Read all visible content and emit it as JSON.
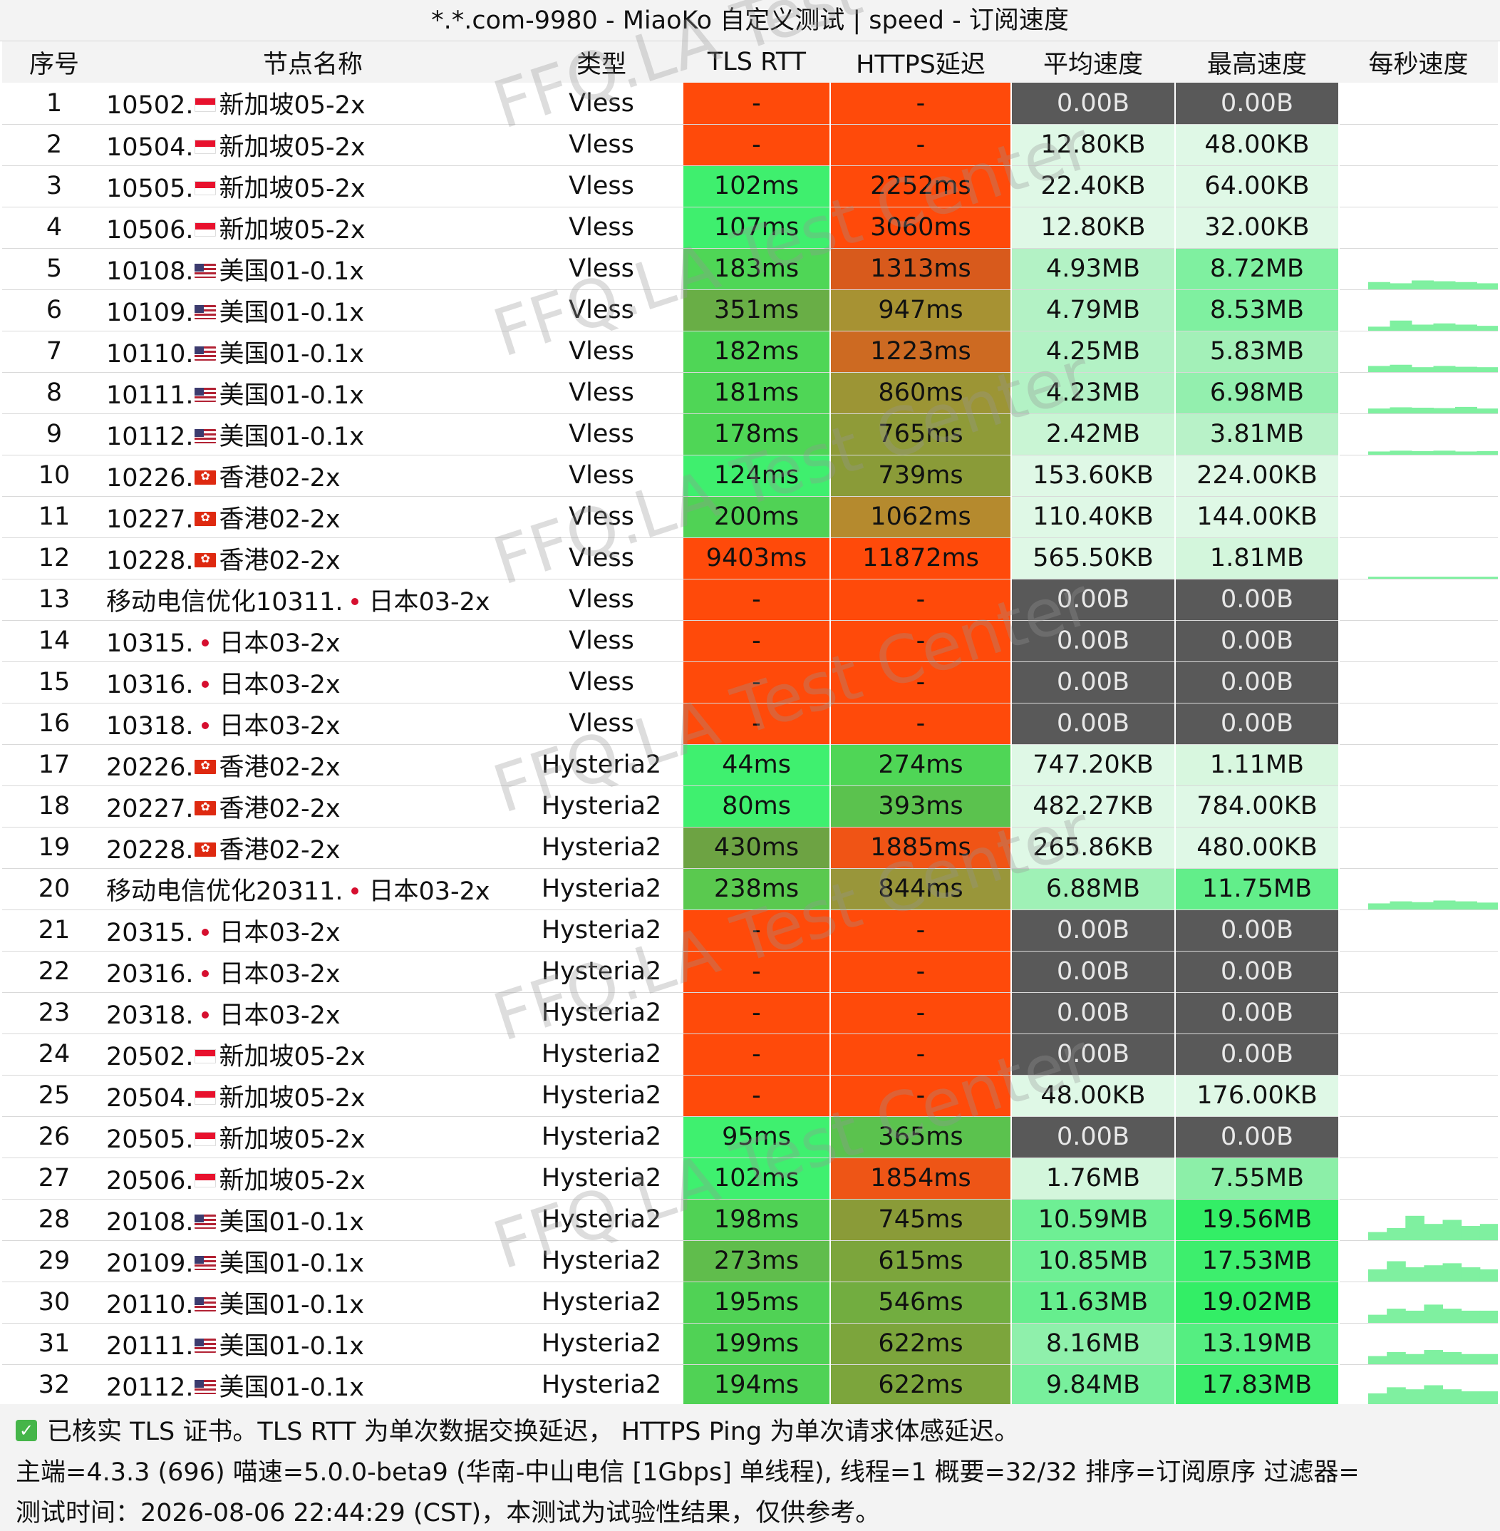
{
  "title": "*.*.com-9980 - MiaoKo 自定义测试 | speed - 订阅速度",
  "watermark": [
    "FFQ.LA",
    "Test Center"
  ],
  "columns": [
    "序号",
    "节点名称",
    "类型",
    "TLS RTT",
    "HTTPS延迟",
    "平均速度",
    "最高速度",
    "每秒速度"
  ],
  "colors": {
    "bad": "#ff4500",
    "dead": "#595959",
    "good": "#33ee66",
    "mid": "#67bb44",
    "slow": "#8a9b38",
    "orange": "#e64a19"
  },
  "rows": [
    {
      "idx": "1",
      "pre": "10502.",
      "flag": "sg",
      "flag_icon": "singapore-flag-icon",
      "suf": "新加坡05-2x",
      "type": "Vless",
      "tls": "-",
      "https": "-",
      "avg": "0.00B",
      "max": "0.00B",
      "tls_c": "#ff4a0a",
      "https_c": "#ff4a0a",
      "avg_c": "#595959",
      "max_c": "#595959",
      "spark": []
    },
    {
      "idx": "2",
      "pre": "10504.",
      "flag": "sg",
      "flag_icon": "singapore-flag-icon",
      "suf": "新加坡05-2x",
      "type": "Vless",
      "tls": "-",
      "https": "-",
      "avg": "12.80KB",
      "max": "48.00KB",
      "tls_c": "#ff4a0a",
      "https_c": "#ff4a0a",
      "avg_c": "#dff8e6",
      "max_c": "#dff8e6",
      "spark": []
    },
    {
      "idx": "3",
      "pre": "10505.",
      "flag": "sg",
      "flag_icon": "singapore-flag-icon",
      "suf": "新加坡05-2x",
      "type": "Vless",
      "tls": "102ms",
      "https": "2252ms",
      "avg": "22.40KB",
      "max": "64.00KB",
      "tls_c": "#3fef6e",
      "https_c": "#ff4a0a",
      "avg_c": "#dff8e6",
      "max_c": "#dff8e6",
      "spark": []
    },
    {
      "idx": "4",
      "pre": "10506.",
      "flag": "sg",
      "flag_icon": "singapore-flag-icon",
      "suf": "新加坡05-2x",
      "type": "Vless",
      "tls": "107ms",
      "https": "3060ms",
      "avg": "12.80KB",
      "max": "32.00KB",
      "tls_c": "#3fef6e",
      "https_c": "#ff4a0a",
      "avg_c": "#dff8e6",
      "max_c": "#dff8e6",
      "spark": []
    },
    {
      "idx": "5",
      "pre": "10108.",
      "flag": "us",
      "flag_icon": "us-flag-icon",
      "suf": "美国01-0.1x",
      "type": "Vless",
      "tls": "183ms",
      "https": "1313ms",
      "avg": "4.93MB",
      "max": "8.72MB",
      "tls_c": "#4fd656",
      "https_c": "#d85a1c",
      "avg_c": "#b3f2c5",
      "max_c": "#7ff0a0",
      "spark": [
        0.18,
        0.15,
        0.22,
        0.2,
        0.18,
        0.15
      ]
    },
    {
      "idx": "6",
      "pre": "10109.",
      "flag": "us",
      "flag_icon": "us-flag-icon",
      "suf": "美国01-0.1x",
      "type": "Vless",
      "tls": "351ms",
      "https": "947ms",
      "avg": "4.79MB",
      "max": "8.53MB",
      "tls_c": "#69ae46",
      "https_c": "#a79233",
      "avg_c": "#b3f2c5",
      "max_c": "#7ff0a0",
      "spark": [
        0.1,
        0.25,
        0.15,
        0.18,
        0.15,
        0.12
      ]
    },
    {
      "idx": "7",
      "pre": "10110.",
      "flag": "us",
      "flag_icon": "us-flag-icon",
      "suf": "美国01-0.1x",
      "type": "Vless",
      "tls": "182ms",
      "https": "1223ms",
      "avg": "4.25MB",
      "max": "5.83MB",
      "tls_c": "#4fd656",
      "https_c": "#cd6a22",
      "avg_c": "#b3f2c5",
      "max_c": "#a3f0b8",
      "spark": [
        0.15,
        0.18,
        0.12,
        0.15,
        0.13,
        0.12
      ]
    },
    {
      "idx": "8",
      "pre": "10111.",
      "flag": "us",
      "flag_icon": "us-flag-icon",
      "suf": "美国01-0.1x",
      "type": "Vless",
      "tls": "181ms",
      "https": "860ms",
      "avg": "4.23MB",
      "max": "6.98MB",
      "tls_c": "#4fd656",
      "https_c": "#9c9535",
      "avg_c": "#b3f2c5",
      "max_c": "#93efae",
      "spark": [
        0.12,
        0.15,
        0.14,
        0.13,
        0.16,
        0.12
      ]
    },
    {
      "idx": "9",
      "pre": "10112.",
      "flag": "us",
      "flag_icon": "us-flag-icon",
      "suf": "美国01-0.1x",
      "type": "Vless",
      "tls": "178ms",
      "https": "765ms",
      "avg": "2.42MB",
      "max": "3.81MB",
      "tls_c": "#4fd656",
      "https_c": "#8f9b38",
      "avg_c": "#c9f5d4",
      "max_c": "#b8f2c8",
      "spark": [
        0.08,
        0.1,
        0.09,
        0.1,
        0.08,
        0.09
      ]
    },
    {
      "idx": "10",
      "pre": "10226.",
      "flag": "hk",
      "flag_icon": "hong-kong-flag-icon",
      "suf": "香港02-2x",
      "type": "Vless",
      "tls": "124ms",
      "https": "739ms",
      "avg": "153.60KB",
      "max": "224.00KB",
      "tls_c": "#3fef6e",
      "https_c": "#8a9b38",
      "avg_c": "#dff8e6",
      "max_c": "#dff8e6",
      "spark": []
    },
    {
      "idx": "11",
      "pre": "10227.",
      "flag": "hk",
      "flag_icon": "hong-kong-flag-icon",
      "suf": "香港02-2x",
      "type": "Vless",
      "tls": "200ms",
      "https": "1062ms",
      "avg": "110.40KB",
      "max": "144.00KB",
      "tls_c": "#50d255",
      "https_c": "#b58a2e",
      "avg_c": "#dff8e6",
      "max_c": "#dff8e6",
      "spark": []
    },
    {
      "idx": "12",
      "pre": "10228.",
      "flag": "hk",
      "flag_icon": "hong-kong-flag-icon",
      "suf": "香港02-2x",
      "type": "Vless",
      "tls": "9403ms",
      "https": "11872ms",
      "avg": "565.50KB",
      "max": "1.81MB",
      "tls_c": "#ff4a0a",
      "https_c": "#ff4a0a",
      "avg_c": "#dff8e6",
      "max_c": "#d3f6dc",
      "spark": [
        0.05
      ]
    },
    {
      "idx": "13",
      "pre": "移动电信优化10311.",
      "flag": "jp",
      "flag_icon": "japan-flag-icon",
      "suf": "日本03-2x",
      "type": "Vless",
      "tls": "-",
      "https": "-",
      "avg": "0.00B",
      "max": "0.00B",
      "tls_c": "#ff4a0a",
      "https_c": "#ff4a0a",
      "avg_c": "#595959",
      "max_c": "#595959",
      "spark": []
    },
    {
      "idx": "14",
      "pre": "10315.",
      "flag": "jp",
      "flag_icon": "japan-flag-icon",
      "suf": "日本03-2x",
      "type": "Vless",
      "tls": "-",
      "https": "-",
      "avg": "0.00B",
      "max": "0.00B",
      "tls_c": "#ff4a0a",
      "https_c": "#ff4a0a",
      "avg_c": "#595959",
      "max_c": "#595959",
      "spark": []
    },
    {
      "idx": "15",
      "pre": "10316.",
      "flag": "jp",
      "flag_icon": "japan-flag-icon",
      "suf": "日本03-2x",
      "type": "Vless",
      "tls": "-",
      "https": "-",
      "avg": "0.00B",
      "max": "0.00B",
      "tls_c": "#ff4a0a",
      "https_c": "#ff4a0a",
      "avg_c": "#595959",
      "max_c": "#595959",
      "spark": []
    },
    {
      "idx": "16",
      "pre": "10318.",
      "flag": "jp",
      "flag_icon": "japan-flag-icon",
      "suf": "日本03-2x",
      "type": "Vless",
      "tls": "-",
      "https": "-",
      "avg": "0.00B",
      "max": "0.00B",
      "tls_c": "#ff4a0a",
      "https_c": "#ff4a0a",
      "avg_c": "#595959",
      "max_c": "#595959",
      "spark": []
    },
    {
      "idx": "17",
      "pre": "20226.",
      "flag": "hk",
      "flag_icon": "hong-kong-flag-icon",
      "suf": "香港02-2x",
      "type": "Hysteria2",
      "tls": "44ms",
      "https": "274ms",
      "avg": "747.20KB",
      "max": "1.11MB",
      "tls_c": "#3ff06f",
      "https_c": "#4fd656",
      "avg_c": "#dff8e6",
      "max_c": "#d8f7df",
      "spark": []
    },
    {
      "idx": "18",
      "pre": "20227.",
      "flag": "hk",
      "flag_icon": "hong-kong-flag-icon",
      "suf": "香港02-2x",
      "type": "Hysteria2",
      "tls": "80ms",
      "https": "393ms",
      "avg": "482.27KB",
      "max": "784.00KB",
      "tls_c": "#3ff06f",
      "https_c": "#5bc24e",
      "avg_c": "#dff8e6",
      "max_c": "#dff8e6",
      "spark": []
    },
    {
      "idx": "19",
      "pre": "20228.",
      "flag": "hk",
      "flag_icon": "hong-kong-flag-icon",
      "suf": "香港02-2x",
      "type": "Hysteria2",
      "tls": "430ms",
      "https": "1885ms",
      "avg": "265.86KB",
      "max": "480.00KB",
      "tls_c": "#6da343",
      "https_c": "#f05415",
      "avg_c": "#dff8e6",
      "max_c": "#dff8e6",
      "spark": []
    },
    {
      "idx": "20",
      "pre": "移动电信优化20311.",
      "flag": "jp",
      "flag_icon": "japan-flag-icon",
      "suf": "日本03-2x",
      "type": "Hysteria2",
      "tls": "238ms",
      "https": "844ms",
      "avg": "6.88MB",
      "max": "11.75MB",
      "tls_c": "#5ac94f",
      "https_c": "#99963a",
      "avg_c": "#9ff1b6",
      "max_c": "#62ee8a",
      "spark": [
        0.15,
        0.2,
        0.18,
        0.22,
        0.2,
        0.17
      ]
    },
    {
      "idx": "21",
      "pre": "20315.",
      "flag": "jp",
      "flag_icon": "japan-flag-icon",
      "suf": "日本03-2x",
      "type": "Hysteria2",
      "tls": "-",
      "https": "-",
      "avg": "0.00B",
      "max": "0.00B",
      "tls_c": "#ff4a0a",
      "https_c": "#ff4a0a",
      "avg_c": "#595959",
      "max_c": "#595959",
      "spark": []
    },
    {
      "idx": "22",
      "pre": "20316.",
      "flag": "jp",
      "flag_icon": "japan-flag-icon",
      "suf": "日本03-2x",
      "type": "Hysteria2",
      "tls": "-",
      "https": "-",
      "avg": "0.00B",
      "max": "0.00B",
      "tls_c": "#ff4a0a",
      "https_c": "#ff4a0a",
      "avg_c": "#595959",
      "max_c": "#595959",
      "spark": []
    },
    {
      "idx": "23",
      "pre": "20318.",
      "flag": "jp",
      "flag_icon": "japan-flag-icon",
      "suf": "日本03-2x",
      "type": "Hysteria2",
      "tls": "-",
      "https": "-",
      "avg": "0.00B",
      "max": "0.00B",
      "tls_c": "#ff4a0a",
      "https_c": "#ff4a0a",
      "avg_c": "#595959",
      "max_c": "#595959",
      "spark": []
    },
    {
      "idx": "24",
      "pre": "20502.",
      "flag": "sg",
      "flag_icon": "singapore-flag-icon",
      "suf": "新加坡05-2x",
      "type": "Hysteria2",
      "tls": "-",
      "https": "-",
      "avg": "0.00B",
      "max": "0.00B",
      "tls_c": "#ff4a0a",
      "https_c": "#ff4a0a",
      "avg_c": "#595959",
      "max_c": "#595959",
      "spark": []
    },
    {
      "idx": "25",
      "pre": "20504.",
      "flag": "sg",
      "flag_icon": "singapore-flag-icon",
      "suf": "新加坡05-2x",
      "type": "Hysteria2",
      "tls": "-",
      "https": "-",
      "avg": "48.00KB",
      "max": "176.00KB",
      "tls_c": "#ff4a0a",
      "https_c": "#ff4a0a",
      "avg_c": "#dff8e6",
      "max_c": "#dff8e6",
      "spark": []
    },
    {
      "idx": "26",
      "pre": "20505.",
      "flag": "sg",
      "flag_icon": "singapore-flag-icon",
      "suf": "新加坡05-2x",
      "type": "Hysteria2",
      "tls": "95ms",
      "https": "365ms",
      "avg": "0.00B",
      "max": "0.00B",
      "tls_c": "#3ff06f",
      "https_c": "#5bc24e",
      "avg_c": "#595959",
      "max_c": "#595959",
      "spark": []
    },
    {
      "idx": "27",
      "pre": "20506.",
      "flag": "sg",
      "flag_icon": "singapore-flag-icon",
      "suf": "新加坡05-2x",
      "type": "Hysteria2",
      "tls": "102ms",
      "https": "1854ms",
      "avg": "1.76MB",
      "max": "7.55MB",
      "tls_c": "#3ff06f",
      "https_c": "#ee5516",
      "avg_c": "#d3f6dc",
      "max_c": "#8cefa8",
      "spark": []
    },
    {
      "idx": "28",
      "pre": "20108.",
      "flag": "us",
      "flag_icon": "us-flag-icon",
      "suf": "美国01-0.1x",
      "type": "Hysteria2",
      "tls": "198ms",
      "https": "745ms",
      "avg": "10.59MB",
      "max": "19.56MB",
      "tls_c": "#50d255",
      "https_c": "#8a9b38",
      "avg_c": "#6eef94",
      "max_c": "#33ee66",
      "spark": [
        0.2,
        0.3,
        0.6,
        0.4,
        0.5,
        0.35,
        0.4
      ]
    },
    {
      "idx": "29",
      "pre": "20109.",
      "flag": "us",
      "flag_icon": "us-flag-icon",
      "suf": "美国01-0.1x",
      "type": "Hysteria2",
      "tls": "273ms",
      "https": "615ms",
      "avg": "10.85MB",
      "max": "17.53MB",
      "tls_c": "#60bd4c",
      "https_c": "#7ca53c",
      "avg_c": "#6eef94",
      "max_c": "#3dee6d",
      "spark": [
        0.3,
        0.5,
        0.35,
        0.4,
        0.45,
        0.35,
        0.3
      ]
    },
    {
      "idx": "30",
      "pre": "20110.",
      "flag": "us",
      "flag_icon": "us-flag-icon",
      "suf": "美国01-0.1x",
      "type": "Hysteria2",
      "tls": "195ms",
      "https": "546ms",
      "avg": "11.63MB",
      "max": "19.02MB",
      "tls_c": "#50d255",
      "https_c": "#72ad40",
      "avg_c": "#66ee8e",
      "max_c": "#33ee66",
      "spark": [
        0.2,
        0.35,
        0.3,
        0.45,
        0.35,
        0.3,
        0.3
      ]
    },
    {
      "idx": "31",
      "pre": "20111.",
      "flag": "us",
      "flag_icon": "us-flag-icon",
      "suf": "美国01-0.1x",
      "type": "Hysteria2",
      "tls": "199ms",
      "https": "622ms",
      "avg": "8.16MB",
      "max": "13.19MB",
      "tls_c": "#50d255",
      "https_c": "#7ca53c",
      "avg_c": "#8ff0ab",
      "max_c": "#55ee81",
      "spark": [
        0.2,
        0.3,
        0.25,
        0.35,
        0.3,
        0.25,
        0.25
      ]
    },
    {
      "idx": "32",
      "pre": "20112.",
      "flag": "us",
      "flag_icon": "us-flag-icon",
      "suf": "美国01-0.1x",
      "type": "Hysteria2",
      "tls": "194ms",
      "https": "622ms",
      "avg": "9.84MB",
      "max": "17.83MB",
      "tls_c": "#50d255",
      "https_c": "#7ca53c",
      "avg_c": "#78ef9c",
      "max_c": "#3cee6c",
      "spark": [
        0.3,
        0.45,
        0.4,
        0.5,
        0.4,
        0.35,
        0.35
      ]
    }
  ],
  "footer": {
    "line1": "已核实 TLS 证书。TLS RTT 为单次数据交换延迟， HTTPS Ping 为单次请求体感延迟。",
    "line2": "主端=4.3.3 (696) 喵速=5.0.0-beta9 (华南-中山电信 [1Gbps] 单线程), 线程=1 概要=32/32 排序=订阅原序 过滤器=",
    "line3": "测试时间：2026-08-06 22:44:29 (CST)，本测试为试验性结果，仅供参考。"
  }
}
